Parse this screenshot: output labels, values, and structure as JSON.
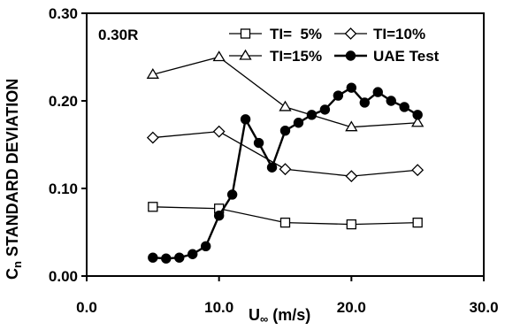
{
  "chart_data": {
    "type": "line",
    "annotation": "0.30R",
    "xlabel": {
      "main": "U",
      "sub": "∞",
      "rest": " (m/s)"
    },
    "ylabel": {
      "main": "C",
      "sub": "n",
      "rest": " STANDARD DEVIATION"
    },
    "xlim": [
      0,
      30
    ],
    "ylim": [
      0,
      0.3
    ],
    "x_ticks": [
      0,
      10,
      20,
      30
    ],
    "x_tick_labels": [
      "0.0",
      "10.0",
      "20.0",
      "30.0"
    ],
    "y_ticks": [
      0,
      0.1,
      0.2,
      0.3
    ],
    "y_tick_labels": [
      "0.00",
      "0.10",
      "0.20",
      "0.30"
    ],
    "grid": false,
    "legend_position": "top-right",
    "series": [
      {
        "name": "TI=  5%",
        "marker": "square",
        "x": [
          5,
          10,
          15,
          20,
          25
        ],
        "y": [
          0.079,
          0.077,
          0.061,
          0.059,
          0.061
        ]
      },
      {
        "name": "TI=10%",
        "marker": "diamond",
        "x": [
          5,
          10,
          15,
          20,
          25
        ],
        "y": [
          0.158,
          0.165,
          0.122,
          0.114,
          0.121
        ]
      },
      {
        "name": "TI=15%",
        "marker": "triangle",
        "x": [
          5,
          10,
          15,
          20,
          25
        ],
        "y": [
          0.23,
          0.25,
          0.193,
          0.17,
          0.175
        ]
      },
      {
        "name": "UAE Test",
        "marker": "filled-circle",
        "x": [
          5,
          6,
          7,
          8,
          9,
          10,
          11,
          12,
          13,
          14,
          15,
          16,
          17,
          18,
          19,
          20,
          21,
          22,
          23,
          24,
          25
        ],
        "y": [
          0.021,
          0.02,
          0.021,
          0.025,
          0.034,
          0.069,
          0.093,
          0.179,
          0.152,
          0.124,
          0.166,
          0.175,
          0.184,
          0.19,
          0.206,
          0.215,
          0.198,
          0.21,
          0.2,
          0.193,
          0.184
        ]
      }
    ]
  }
}
